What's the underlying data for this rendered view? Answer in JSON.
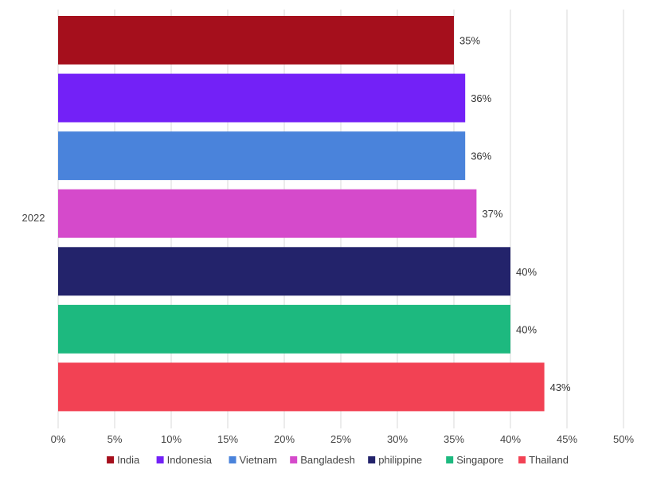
{
  "chart_data": {
    "type": "bar",
    "orientation": "horizontal",
    "categories": [
      "2022"
    ],
    "series": [
      {
        "name": "India",
        "values": [
          35
        ],
        "label": "35%",
        "color": "#A50F1C"
      },
      {
        "name": "Indonesia",
        "values": [
          36
        ],
        "label": "36%",
        "color": "#7321F7"
      },
      {
        "name": "Vietnam",
        "values": [
          36
        ],
        "label": "36%",
        "color": "#4A83DB"
      },
      {
        "name": "Bangladesh",
        "values": [
          37
        ],
        "label": "37%",
        "color": "#D54ACB"
      },
      {
        "name": "philippine",
        "values": [
          40
        ],
        "label": "40%",
        "color": "#23236B"
      },
      {
        "name": "Singapore",
        "values": [
          40
        ],
        "label": "40%",
        "color": "#1DB97F"
      },
      {
        "name": "Thailand",
        "values": [
          43
        ],
        "label": "43%",
        "color": "#F24254"
      }
    ],
    "x_ticks": [
      "0%",
      "5%",
      "10%",
      "15%",
      "20%",
      "25%",
      "30%",
      "35%",
      "40%",
      "45%",
      "50%"
    ],
    "xlim": [
      0,
      50
    ],
    "grid": "vertical",
    "legend": "bottom-center",
    "title": "",
    "xlabel": "",
    "ylabel": ""
  }
}
